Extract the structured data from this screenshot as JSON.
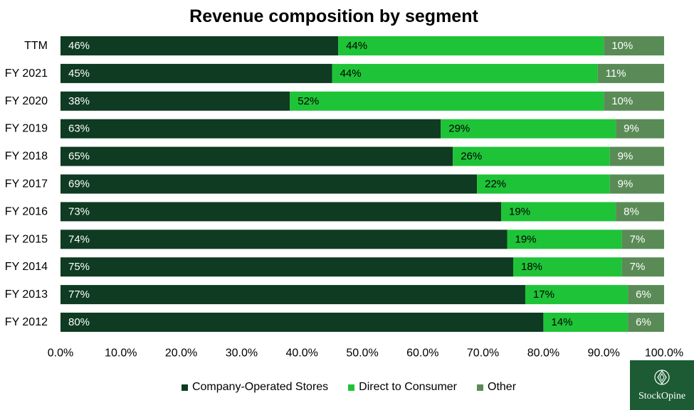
{
  "chart_data": {
    "type": "bar",
    "orientation": "horizontal",
    "stacked": true,
    "title": "Revenue composition by segment",
    "categories": [
      "TTM",
      "FY 2021",
      "FY 2020",
      "FY 2019",
      "FY 2018",
      "FY 2017",
      "FY 2016",
      "FY 2015",
      "FY 2014",
      "FY 2013",
      "FY 2012"
    ],
    "series": [
      {
        "name": "Company-Operated Stores",
        "color": "#0e3b22",
        "label_color": "#ffffff",
        "values": [
          46,
          45,
          38,
          63,
          65,
          69,
          73,
          74,
          75,
          77,
          80
        ],
        "labels": [
          "46%",
          "45%",
          "38%",
          "63%",
          "65%",
          "69%",
          "73%",
          "74%",
          "75%",
          "77%",
          "80%"
        ]
      },
      {
        "name": "Direct to Consumer",
        "color": "#1fc338",
        "label_color": "#000000",
        "values": [
          44,
          44,
          52,
          29,
          26,
          22,
          19,
          19,
          18,
          17,
          14
        ],
        "labels": [
          "44%",
          "44%",
          "52%",
          "29%",
          "26%",
          "22%",
          "19%",
          "19%",
          "18%",
          "17%",
          "14%"
        ]
      },
      {
        "name": "Other",
        "color": "#5a8b57",
        "label_color": "#ffffff",
        "values": [
          10,
          11,
          10,
          9,
          9,
          9,
          8,
          7,
          7,
          6,
          6
        ],
        "labels": [
          "10%",
          "11%",
          "10%",
          "9%",
          "9%",
          "9%",
          "8%",
          "7%",
          "7%",
          "6%",
          "6%"
        ]
      }
    ],
    "xlim": [
      0,
      100
    ],
    "x_ticks": [
      "0.0%",
      "10.0%",
      "20.0%",
      "30.0%",
      "40.0%",
      "50.0%",
      "60.0%",
      "70.0%",
      "80.0%",
      "90.0%",
      "100.0%"
    ],
    "grid": false,
    "legend_position": "bottom"
  },
  "brand": {
    "logo_text": "StockOpine"
  }
}
